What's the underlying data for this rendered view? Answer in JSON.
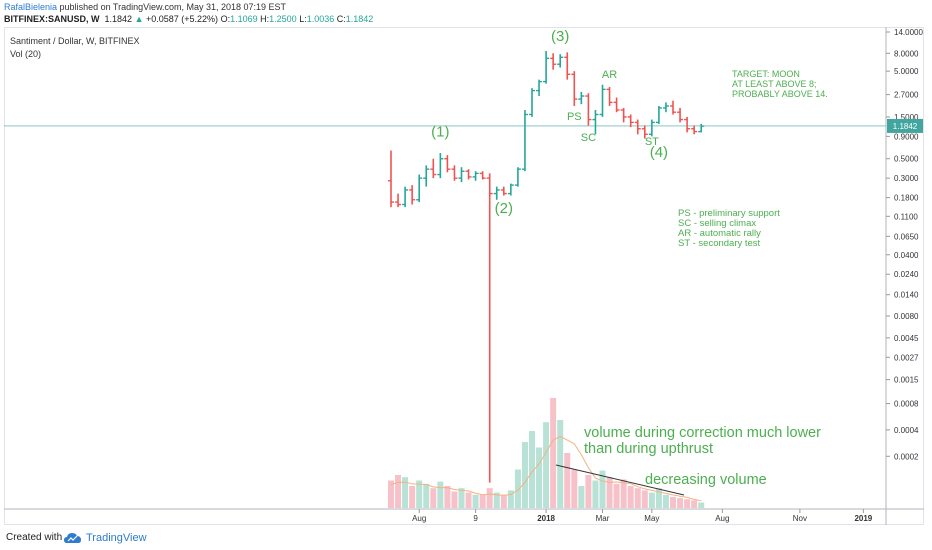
{
  "header": {
    "author": "RafalBielenia",
    "published": " published on TradingView.com, May 31, 2018 07:19 EST",
    "symbol": "BITFINEX:SANUSD, W",
    "price": "1.1842",
    "change": "+0.0587 (+5.22%)",
    "o_label": "O:",
    "o_value": "1.1069",
    "h_label": "H:",
    "h_value": "1.2500",
    "l_label": "L:",
    "l_value": "1.0036",
    "c_label": "C:",
    "c_value": "1.1842"
  },
  "footer": {
    "created": "Created with",
    "brand": "TradingView"
  },
  "colors": {
    "up": "#26a69a",
    "down": "#ef5350",
    "up_vol": "#b7e2d5",
    "down_vol": "#f7c1c9",
    "annotation": "#4caf50",
    "last_price": "#42a5a0"
  },
  "chart_data": {
    "type": "candlestick",
    "title": "Santiment / Dollar, W, BITFINEX",
    "volume_label": "Vol (20)",
    "y_scale": "log",
    "ylim": [
      5e-05,
      14
    ],
    "y_ticks": [
      "14.0000",
      "8.0000",
      "5.0000",
      "2.7000",
      "1.5000",
      "0.9000",
      "0.5000",
      "0.3000",
      "0.1800",
      "0.1100",
      "0.0650",
      "0.0400",
      "0.0240",
      "0.0140",
      "0.0080",
      "0.0045",
      "0.0027",
      "0.0015",
      "0.0008",
      "0.0004",
      "0.0002"
    ],
    "y_tick_values": [
      14,
      8,
      5,
      2.7,
      1.5,
      0.9,
      0.5,
      0.3,
      0.18,
      0.11,
      0.065,
      0.04,
      0.024,
      0.014,
      0.008,
      0.0045,
      0.0027,
      0.0015,
      0.0008,
      0.0004,
      0.0002
    ],
    "x_ticks": [
      "Aug",
      "9",
      "2018",
      "Mar",
      "May",
      "Aug",
      "Nov",
      "2019"
    ],
    "x_tick_bars": [
      4,
      12,
      22,
      30,
      37,
      47,
      58,
      67
    ],
    "last_price": "1.1842",
    "bars": [
      {
        "o": 0.28,
        "h": 0.62,
        "l": 0.14,
        "c": 0.16,
        "v": 0.25
      },
      {
        "o": 0.16,
        "h": 0.2,
        "l": 0.14,
        "c": 0.15,
        "v": 0.3
      },
      {
        "o": 0.15,
        "h": 0.24,
        "l": 0.14,
        "c": 0.22,
        "v": 0.28
      },
      {
        "o": 0.22,
        "h": 0.25,
        "l": 0.15,
        "c": 0.17,
        "v": 0.2
      },
      {
        "o": 0.17,
        "h": 0.33,
        "l": 0.16,
        "c": 0.3,
        "v": 0.25
      },
      {
        "o": 0.3,
        "h": 0.42,
        "l": 0.24,
        "c": 0.38,
        "v": 0.22
      },
      {
        "o": 0.38,
        "h": 0.5,
        "l": 0.3,
        "c": 0.33,
        "v": 0.18
      },
      {
        "o": 0.33,
        "h": 0.58,
        "l": 0.3,
        "c": 0.5,
        "v": 0.24
      },
      {
        "o": 0.5,
        "h": 0.55,
        "l": 0.35,
        "c": 0.38,
        "v": 0.2
      },
      {
        "o": 0.38,
        "h": 0.42,
        "l": 0.28,
        "c": 0.3,
        "v": 0.15
      },
      {
        "o": 0.3,
        "h": 0.4,
        "l": 0.27,
        "c": 0.36,
        "v": 0.18
      },
      {
        "o": 0.36,
        "h": 0.38,
        "l": 0.29,
        "c": 0.31,
        "v": 0.14
      },
      {
        "o": 0.31,
        "h": 0.36,
        "l": 0.28,
        "c": 0.34,
        "v": 0.12
      },
      {
        "o": 0.34,
        "h": 0.36,
        "l": 0.29,
        "c": 0.3,
        "v": 0.12
      },
      {
        "o": 0.3,
        "h": 0.34,
        "l": 0.0001,
        "c": 0.2,
        "v": 0.18
      },
      {
        "o": 0.2,
        "h": 0.24,
        "l": 0.17,
        "c": 0.22,
        "v": 0.14
      },
      {
        "o": 0.22,
        "h": 0.24,
        "l": 0.19,
        "c": 0.2,
        "v": 0.12
      },
      {
        "o": 0.2,
        "h": 0.26,
        "l": 0.19,
        "c": 0.25,
        "v": 0.16
      },
      {
        "o": 0.25,
        "h": 0.4,
        "l": 0.24,
        "c": 0.38,
        "v": 0.35
      },
      {
        "o": 0.38,
        "h": 1.8,
        "l": 0.36,
        "c": 1.6,
        "v": 0.6
      },
      {
        "o": 1.6,
        "h": 3.2,
        "l": 1.5,
        "c": 3.0,
        "v": 0.7
      },
      {
        "o": 3.0,
        "h": 4.0,
        "l": 2.6,
        "c": 3.8,
        "v": 0.55
      },
      {
        "o": 3.8,
        "h": 8.5,
        "l": 3.6,
        "c": 7.0,
        "v": 0.78
      },
      {
        "o": 7.0,
        "h": 8.0,
        "l": 5.2,
        "c": 6.0,
        "v": 1.0
      },
      {
        "o": 6.0,
        "h": 7.8,
        "l": 5.5,
        "c": 7.2,
        "v": 0.8
      },
      {
        "o": 7.2,
        "h": 8.2,
        "l": 4.0,
        "c": 4.6,
        "v": 0.5
      },
      {
        "o": 4.6,
        "h": 5.0,
        "l": 2.0,
        "c": 2.4,
        "v": 0.35
      },
      {
        "o": 2.4,
        "h": 2.9,
        "l": 2.1,
        "c": 2.6,
        "v": 0.2
      },
      {
        "o": 2.6,
        "h": 2.8,
        "l": 1.2,
        "c": 1.4,
        "v": 0.3
      },
      {
        "o": 1.4,
        "h": 1.8,
        "l": 0.95,
        "c": 1.6,
        "v": 0.25
      },
      {
        "o": 1.6,
        "h": 3.5,
        "l": 1.5,
        "c": 3.1,
        "v": 0.34
      },
      {
        "o": 3.1,
        "h": 3.3,
        "l": 2.0,
        "c": 2.2,
        "v": 0.28
      },
      {
        "o": 2.2,
        "h": 2.5,
        "l": 1.7,
        "c": 1.8,
        "v": 0.22
      },
      {
        "o": 1.8,
        "h": 1.9,
        "l": 1.3,
        "c": 1.5,
        "v": 0.26
      },
      {
        "o": 1.5,
        "h": 1.6,
        "l": 1.15,
        "c": 1.3,
        "v": 0.2
      },
      {
        "o": 1.3,
        "h": 1.4,
        "l": 0.95,
        "c": 1.1,
        "v": 0.18
      },
      {
        "o": 1.1,
        "h": 1.2,
        "l": 0.85,
        "c": 0.95,
        "v": 0.16
      },
      {
        "o": 0.95,
        "h": 1.4,
        "l": 0.9,
        "c": 1.3,
        "v": 0.14
      },
      {
        "o": 1.3,
        "h": 2.0,
        "l": 1.25,
        "c": 1.9,
        "v": 0.18
      },
      {
        "o": 1.9,
        "h": 2.2,
        "l": 1.7,
        "c": 2.0,
        "v": 0.12
      },
      {
        "o": 2.0,
        "h": 2.3,
        "l": 1.6,
        "c": 1.7,
        "v": 0.1
      },
      {
        "o": 1.7,
        "h": 1.9,
        "l": 1.3,
        "c": 1.4,
        "v": 0.09
      },
      {
        "o": 1.4,
        "h": 1.5,
        "l": 1.0,
        "c": 1.1,
        "v": 0.08
      },
      {
        "o": 1.1,
        "h": 1.2,
        "l": 0.95,
        "c": 1.02,
        "v": 0.07
      },
      {
        "o": 1.02,
        "h": 1.25,
        "l": 1.0,
        "c": 1.18,
        "v": 0.05
      }
    ],
    "annotations": [
      {
        "text": "(1)",
        "bar": 7,
        "price": 0.9
      },
      {
        "text": "(2)",
        "bar": 16,
        "price": 0.12
      },
      {
        "text": "(3)",
        "bar": 24,
        "price": 11
      },
      {
        "text": "(4)",
        "bar": 38,
        "price": 0.52
      },
      {
        "text": "PS",
        "bar": 26,
        "price": 1.38
      },
      {
        "text": "SC",
        "bar": 28,
        "price": 0.8
      },
      {
        "text": "AR",
        "bar": 31,
        "price": 4.2
      },
      {
        "text": "ST",
        "bar": 37,
        "price": 0.72
      }
    ],
    "notes": {
      "target": [
        "TARGET: MOON",
        "AT LEAST ABOVE 8;",
        "PROBABLY ABOVE 14."
      ],
      "legend": [
        "PS - preliminary support",
        "SC - selling climax",
        "AR - automatic rally",
        "ST - secondary test"
      ],
      "volume_note": [
        "volume during correction much lower",
        "than during upthrust"
      ],
      "decreasing": "decreasing volume"
    }
  }
}
